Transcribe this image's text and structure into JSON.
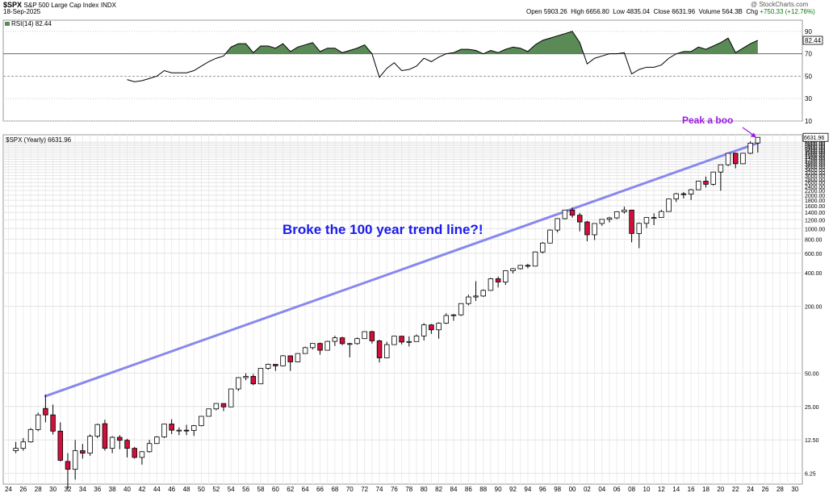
{
  "header": {
    "symbol": "$SPX",
    "name": "S&P 500 Large Cap Index",
    "exchange": "INDX",
    "date": "18-Sep-2025",
    "brand": "@ StockCharts.com",
    "ohlc": {
      "open_label": "Open",
      "open": "5903.26",
      "high_label": "High",
      "high": "6656.80",
      "low_label": "Low",
      "low": "4835.04",
      "close_label": "Close",
      "close": "6631.96",
      "volume_label": "Volume",
      "volume": "564.3B",
      "chg_label": "Chg",
      "chg": "+750.33 (+12.76%)"
    }
  },
  "rsi_panel": {
    "label": "RSI(14) 82.44",
    "last_value": "82.44",
    "chart_data": {
      "type": "area",
      "title": "RSI(14)",
      "ylim": [
        10,
        100
      ],
      "yticks": [
        10,
        30,
        50,
        70,
        90
      ],
      "overbought": 70,
      "oversold": 50,
      "fill_above": "#5a8a55",
      "line_color": "#000000",
      "x": [
        1940,
        1941,
        1942,
        1943,
        1944,
        1945,
        1946,
        1947,
        1948,
        1949,
        1950,
        1951,
        1952,
        1953,
        1954,
        1955,
        1956,
        1957,
        1958,
        1959,
        1960,
        1961,
        1962,
        1963,
        1964,
        1965,
        1966,
        1967,
        1968,
        1969,
        1970,
        1971,
        1972,
        1973,
        1974,
        1975,
        1976,
        1977,
        1978,
        1979,
        1980,
        1981,
        1982,
        1983,
        1984,
        1985,
        1986,
        1987,
        1988,
        1989,
        1990,
        1991,
        1992,
        1993,
        1994,
        1995,
        1996,
        1997,
        1998,
        1999,
        2000,
        2001,
        2002,
        2003,
        2004,
        2005,
        2006,
        2007,
        2008,
        2009,
        2010,
        2011,
        2012,
        2013,
        2014,
        2015,
        2016,
        2017,
        2018,
        2019,
        2020,
        2021,
        2022,
        2023,
        2024,
        2025
      ],
      "values": [
        47,
        45,
        46,
        48,
        50,
        55,
        53,
        53,
        53,
        55,
        59,
        63,
        66,
        68,
        76,
        79,
        79,
        71,
        77,
        77,
        75,
        79,
        72,
        76,
        78,
        80,
        72,
        75,
        75,
        71,
        73,
        75,
        78,
        70,
        49,
        57,
        62,
        55,
        56,
        59,
        66,
        63,
        67,
        70,
        71,
        74,
        74,
        73,
        70,
        73,
        71,
        74,
        76,
        75,
        72,
        78,
        82,
        84,
        86,
        88,
        90,
        80,
        61,
        66,
        68,
        70,
        70,
        71,
        52,
        56,
        58,
        58,
        60,
        66,
        70,
        72,
        72,
        76,
        74,
        77,
        80,
        84,
        71,
        75,
        79,
        82
      ]
    }
  },
  "price_panel": {
    "label": "$SPX (Yearly) 6631.96",
    "last_price_label": "6631.96",
    "annotation_main": "Broke the 100 year trend line?!",
    "annotation_peak": "Peak a boo",
    "colors": {
      "up": "#ffffff",
      "down": "#d0103a",
      "trendline": "#8888ee",
      "annotation_main": "#1a1aee",
      "annotation_peak": "#9a1ae0"
    },
    "chart_data": {
      "type": "candlestick",
      "scale": "log",
      "ylim": [
        5,
        7000
      ],
      "xlim": [
        1923.3,
        2031
      ],
      "yticks": [
        6.25,
        12.5,
        25,
        50,
        200,
        400,
        600,
        800,
        1000,
        1200,
        1400,
        1600,
        1800,
        2000,
        2200,
        2400,
        2600,
        2800,
        3000,
        3200,
        3400,
        3600,
        3800,
        4000,
        4200,
        4400,
        4600,
        4800,
        5000,
        5200,
        5400,
        5600,
        5800,
        6000
      ],
      "ytick_labels": [
        "6.25",
        "12.50",
        "25.00",
        "50.00",
        "200.00",
        "400.00",
        "600.00",
        "800.00",
        "1000.00",
        "1200.00",
        "1400.00",
        "1600.00",
        "1800.00",
        "2000.00",
        "2200.00",
        "2400.00",
        "2600.00",
        "2800.00",
        "3000.00",
        "3200.00",
        "3400.00",
        "3600.00",
        "3800.00",
        "4000.00",
        "4200.00",
        "4400.00",
        "4600.00",
        "4800.00",
        "5000.00",
        "5200.00",
        "5400.00",
        "5600.00",
        "5800.00",
        "6000.00"
      ],
      "xticks": [
        1924,
        1926,
        1928,
        1930,
        1932,
        1934,
        1936,
        1938,
        1940,
        1942,
        1944,
        1946,
        1948,
        1950,
        1952,
        1954,
        1956,
        1958,
        1960,
        1962,
        1964,
        1966,
        1968,
        1970,
        1972,
        1974,
        1976,
        1978,
        1980,
        1982,
        1984,
        1986,
        1988,
        1990,
        1992,
        1994,
        1996,
        1998,
        2000,
        2002,
        2004,
        2006,
        2008,
        2010,
        2012,
        2014,
        2016,
        2018,
        2020,
        2022,
        2024,
        2026,
        2028,
        2030
      ],
      "xtick_labels": [
        "24",
        "26",
        "28",
        "30",
        "32",
        "34",
        "36",
        "38",
        "40",
        "42",
        "44",
        "46",
        "48",
        "50",
        "52",
        "54",
        "56",
        "58",
        "60",
        "62",
        "64",
        "66",
        "68",
        "70",
        "72",
        "74",
        "76",
        "78",
        "80",
        "82",
        "84",
        "86",
        "88",
        "90",
        "92",
        "94",
        "96",
        "98",
        "00",
        "02",
        "04",
        "06",
        "08",
        "10",
        "12",
        "14",
        "16",
        "18",
        "20",
        "22",
        "24",
        "26",
        "28",
        "30"
      ],
      "trendline": [
        [
          1929,
          31
        ],
        [
          2025,
          5900
        ]
      ],
      "candles": [
        [
          1925,
          10,
          12,
          9.5,
          10.5
        ],
        [
          1926,
          10.5,
          13,
          10,
          12
        ],
        [
          1927,
          12,
          16,
          11.8,
          15.5
        ],
        [
          1928,
          15.5,
          22,
          15,
          21
        ],
        [
          1929,
          24,
          32,
          18,
          21
        ],
        [
          1930,
          21,
          26,
          14,
          15
        ],
        [
          1931,
          15,
          18,
          8,
          8.2
        ],
        [
          1932,
          8,
          9.5,
          4.5,
          6.8
        ],
        [
          1933,
          6.8,
          12.5,
          5.5,
          10
        ],
        [
          1934,
          10,
          11.5,
          8.5,
          9.5
        ],
        [
          1935,
          9.5,
          14,
          9,
          13.5
        ],
        [
          1936,
          13.5,
          17.5,
          13,
          17.2
        ],
        [
          1937,
          17.5,
          19,
          10,
          10.5
        ],
        [
          1938,
          10.5,
          13.5,
          9.5,
          13.2
        ],
        [
          1939,
          13.2,
          13.8,
          10.3,
          12.4
        ],
        [
          1940,
          12.4,
          12.8,
          8.7,
          10.5
        ],
        [
          1941,
          10.5,
          10.8,
          8.5,
          8.7
        ],
        [
          1942,
          8.7,
          9.9,
          7.5,
          9.8
        ],
        [
          1943,
          9.8,
          12.5,
          9.6,
          11.6
        ],
        [
          1944,
          11.6,
          13.5,
          11.5,
          13.3
        ],
        [
          1945,
          13.3,
          17.5,
          13,
          17.4
        ],
        [
          1946,
          17.4,
          19.2,
          14.1,
          15.3
        ],
        [
          1947,
          15.3,
          16.2,
          13.8,
          15.3
        ],
        [
          1948,
          15.3,
          17.1,
          13.8,
          15.2
        ],
        [
          1949,
          15.2,
          17,
          13.6,
          16.8
        ],
        [
          1950,
          16.8,
          20.4,
          16.6,
          20.4
        ],
        [
          1951,
          20.4,
          23.8,
          20.7,
          23.8
        ],
        [
          1952,
          23.8,
          26.6,
          23.1,
          26.6
        ],
        [
          1953,
          26.6,
          26.7,
          22.7,
          24.8
        ],
        [
          1954,
          24.8,
          36,
          24.8,
          35.98
        ],
        [
          1955,
          35.98,
          46,
          34.6,
          45.5
        ],
        [
          1956,
          45.5,
          49.7,
          43.1,
          46.7
        ],
        [
          1957,
          46.7,
          49.1,
          38.9,
          39.99
        ],
        [
          1958,
          39.99,
          55.2,
          39.99,
          55.2
        ],
        [
          1959,
          55.2,
          60.7,
          53.6,
          59.9
        ],
        [
          1960,
          59.9,
          60.4,
          52.3,
          58.1
        ],
        [
          1961,
          58.1,
          72.6,
          57.6,
          71.55
        ],
        [
          1962,
          71.55,
          71.1,
          52.3,
          63.1
        ],
        [
          1963,
          63.1,
          75,
          62.7,
          75
        ],
        [
          1964,
          75,
          86.3,
          75.4,
          84.75
        ],
        [
          1965,
          84.75,
          92.6,
          81.6,
          92.43
        ],
        [
          1966,
          92.43,
          94.1,
          73.2,
          80.3
        ],
        [
          1967,
          80.3,
          97.6,
          80.4,
          96.5
        ],
        [
          1968,
          96.5,
          108.4,
          87.7,
          103.9
        ],
        [
          1969,
          103.9,
          106.2,
          89.2,
          92.06
        ],
        [
          1970,
          92.06,
          93.5,
          69.3,
          92.15
        ],
        [
          1971,
          92.15,
          104.8,
          90.2,
          102.1
        ],
        [
          1972,
          102.1,
          119.1,
          101.7,
          118.1
        ],
        [
          1973,
          118.1,
          120.2,
          92.2,
          97.55
        ],
        [
          1974,
          97.55,
          99.8,
          62.3,
          68.56
        ],
        [
          1975,
          68.56,
          95.6,
          70,
          90.19
        ],
        [
          1976,
          90.19,
          107.8,
          90.9,
          107.5
        ],
        [
          1977,
          107.5,
          107,
          90.7,
          95.1
        ],
        [
          1978,
          95.1,
          106.99,
          86.9,
          96.11
        ],
        [
          1979,
          96.11,
          111.3,
          96.1,
          107.9
        ],
        [
          1980,
          107.9,
          140.5,
          98.2,
          135.8
        ],
        [
          1981,
          135.8,
          138.1,
          112.8,
          122.6
        ],
        [
          1982,
          122.6,
          143,
          102.2,
          140.6
        ],
        [
          1983,
          140.6,
          172.7,
          138.3,
          164.9
        ],
        [
          1984,
          164.9,
          170.4,
          147.8,
          167.2
        ],
        [
          1985,
          167.2,
          212,
          163.7,
          211.3
        ],
        [
          1986,
          211.3,
          254,
          203.5,
          242.2
        ],
        [
          1987,
          242.2,
          336,
          223,
          247.1
        ],
        [
          1988,
          247.1,
          283.7,
          242.6,
          277.7
        ],
        [
          1989,
          277.7,
          359.8,
          275.3,
          353.4
        ],
        [
          1990,
          353.4,
          369.8,
          295.5,
          330.2
        ],
        [
          1991,
          330.2,
          417.1,
          311.5,
          417.1
        ],
        [
          1992,
          417.1,
          441.3,
          394.5,
          435.7
        ],
        [
          1993,
          435.7,
          470.9,
          429,
          466.5
        ],
        [
          1994,
          466.5,
          482,
          438.9,
          459.3
        ],
        [
          1995,
          459.3,
          621.7,
          459.3,
          615.9
        ],
        [
          1996,
          615.9,
          757,
          597.3,
          740.7
        ],
        [
          1997,
          740.7,
          983.8,
          737,
          970.4
        ],
        [
          1998,
          970.4,
          1241.8,
          923.3,
          1229.2
        ],
        [
          1999,
          1229.2,
          1469.3,
          1212.2,
          1469.3
        ],
        [
          2000,
          1469.3,
          1553.1,
          1254.1,
          1320.3
        ],
        [
          2001,
          1320.3,
          1383.4,
          944.8,
          1148.1
        ],
        [
          2002,
          1148.1,
          1172.5,
          768.6,
          879.8
        ],
        [
          2003,
          879.8,
          1112,
          788.9,
          1111.9
        ],
        [
          2004,
          1111.9,
          1217.3,
          1060.7,
          1211.9
        ],
        [
          2005,
          1211.9,
          1275.8,
          1136.2,
          1248.3
        ],
        [
          2006,
          1248.3,
          1431.8,
          1219.3,
          1418.3
        ],
        [
          2007,
          1418.3,
          1576.1,
          1363.9,
          1468.4
        ],
        [
          2008,
          1468.4,
          1471.8,
          752.4,
          903.3
        ],
        [
          2009,
          903.3,
          1130.4,
          666.8,
          1115.1
        ],
        [
          2010,
          1115.1,
          1262.6,
          1010.9,
          1257.6
        ],
        [
          2011,
          1257.6,
          1370.6,
          1074.8,
          1257.6
        ],
        [
          2012,
          1257.6,
          1474.5,
          1258.9,
          1426.2
        ],
        [
          2013,
          1426.2,
          1849.4,
          1426.2,
          1848.4
        ],
        [
          2014,
          1848.4,
          2093.6,
          1737.9,
          2058.9
        ],
        [
          2015,
          2058.9,
          2134.7,
          1867,
          2043.9
        ],
        [
          2016,
          2043.9,
          2277.5,
          1810.1,
          2238.8
        ],
        [
          2017,
          2238.8,
          2694.9,
          2245.1,
          2673.6
        ],
        [
          2018,
          2673.6,
          2940.9,
          2346.6,
          2506.9
        ],
        [
          2019,
          2506.9,
          3247.9,
          2443.9,
          3230.8
        ],
        [
          2020,
          3230.8,
          3760.2,
          2191.9,
          3756.1
        ],
        [
          2021,
          3756.1,
          4808.9,
          3662.7,
          4766.2
        ],
        [
          2022,
          4766.2,
          4818.6,
          3491.6,
          3839.5
        ],
        [
          2023,
          3839.5,
          4793.3,
          3808.9,
          4769.8
        ],
        [
          2024,
          4769.8,
          6099.97,
          4682.1,
          5881.6
        ],
        [
          2025,
          5903.26,
          6656.8,
          4835.04,
          6631.96
        ]
      ]
    }
  }
}
